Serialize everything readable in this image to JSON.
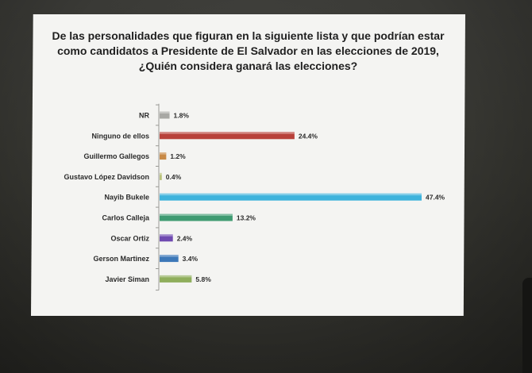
{
  "slide": {
    "title_lines": [
      "De las personalidades que figuran en la siguiente lista y que podrían estar",
      "como candidatos a Presidente de El Salvador en las elecciones de 2019,",
      "¿Quién considera ganará las elecciones?"
    ]
  },
  "chart_data": {
    "type": "bar",
    "orientation": "horizontal",
    "title": "De las personalidades que figuran en la siguiente lista y que podrían estar como candidatos a Presidente de El Salvador en las elecciones de 2019, ¿Quién considera ganará las elecciones?",
    "xlabel": "",
    "ylabel": "",
    "xlim": [
      0,
      50
    ],
    "grid": false,
    "legend": "none",
    "categories": [
      "NR",
      "Ninguno de ellos",
      "Guillermo Gallegos",
      "Gustavo López Davidson",
      "Nayib Bukele",
      "Carlos Calleja",
      "Oscar Ortiz",
      "Gerson Martinez",
      "Javier Siman"
    ],
    "values": [
      1.8,
      24.4,
      1.2,
      0.4,
      47.4,
      13.2,
      2.4,
      3.4,
      5.8
    ],
    "data_labels": [
      "1.8%",
      "24.4%",
      "1.2%",
      "0.4%",
      "47.4%",
      "13.2%",
      "2.4%",
      "3.4%",
      "5.8%"
    ],
    "colors": [
      "#a8a8a4",
      "#b8413a",
      "#c88a47",
      "#b9c27a",
      "#3eb3dc",
      "#3f9b72",
      "#6f4ab0",
      "#3d78b8",
      "#8fae5c"
    ]
  }
}
